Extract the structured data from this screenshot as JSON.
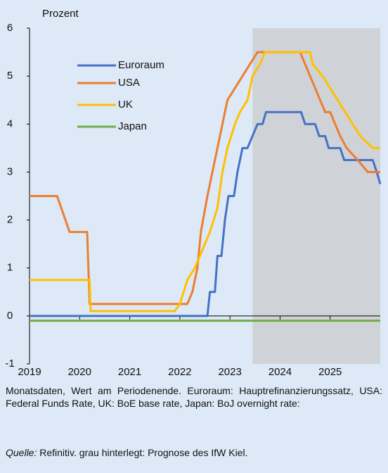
{
  "chart_data": {
    "type": "line",
    "y_label": "Prozent",
    "xlim": [
      2019,
      2026
    ],
    "xticks": [
      2019,
      2020,
      2021,
      2022,
      2023,
      2024,
      2025
    ],
    "ylim": [
      -1,
      6
    ],
    "yticks": [
      -1,
      0,
      1,
      2,
      3,
      4,
      5,
      6
    ],
    "shaded": [
      2023.45,
      2026
    ],
    "series": [
      {
        "name": "Euroraum",
        "color": "#4472c4",
        "x": [
          2019,
          2022.55,
          2022.6,
          2022.7,
          2022.75,
          2022.83,
          2022.9,
          2022.97,
          2023.08,
          2023.15,
          2023.25,
          2023.35,
          2023.45,
          2023.55,
          2023.65,
          2023.72,
          2024.42,
          2024.5,
          2024.7,
          2024.78,
          2024.9,
          2024.97,
          2025.2,
          2025.28,
          2025.85,
          2025.93,
          2026
        ],
        "values": [
          0,
          0,
          0.5,
          0.5,
          1.25,
          1.25,
          2.0,
          2.5,
          2.5,
          3.0,
          3.5,
          3.5,
          3.75,
          4.0,
          4.0,
          4.25,
          4.25,
          4.0,
          4.0,
          3.75,
          3.75,
          3.5,
          3.5,
          3.25,
          3.25,
          3.0,
          2.75
        ]
      },
      {
        "name": "USA",
        "color": "#ed7d31",
        "x": [
          2019,
          2019.55,
          2019.8,
          2020.15,
          2020.2,
          2022.15,
          2022.25,
          2022.35,
          2022.42,
          2022.55,
          2022.7,
          2022.85,
          2022.95,
          2023.1,
          2023.25,
          2023.4,
          2023.55,
          2024.4,
          2024.5,
          2024.6,
          2024.7,
          2024.8,
          2024.9,
          2025.0,
          2025.1,
          2025.2,
          2025.33,
          2025.55,
          2025.75,
          2026
        ],
        "values": [
          2.5,
          2.5,
          1.75,
          1.75,
          0.25,
          0.25,
          0.5,
          1.0,
          1.75,
          2.5,
          3.25,
          4.0,
          4.5,
          4.75,
          5.0,
          5.25,
          5.5,
          5.5,
          5.25,
          5.0,
          4.75,
          4.5,
          4.25,
          4.25,
          4.0,
          3.75,
          3.5,
          3.25,
          3.0,
          3.0
        ]
      },
      {
        "name": "UK",
        "color": "#ffc000",
        "x": [
          2019,
          2020.2,
          2020.22,
          2021.9,
          2022.0,
          2022.15,
          2022.3,
          2022.4,
          2022.6,
          2022.75,
          2022.85,
          2022.95,
          2023.1,
          2023.2,
          2023.35,
          2023.45,
          2023.6,
          2023.7,
          2024.6,
          2024.65,
          2024.85,
          2025.0,
          2025.3,
          2025.45,
          2025.6,
          2025.85,
          2026
        ],
        "values": [
          0.75,
          0.75,
          0.1,
          0.1,
          0.25,
          0.75,
          1.0,
          1.25,
          1.75,
          2.25,
          3.0,
          3.5,
          4.0,
          4.25,
          4.5,
          5.0,
          5.25,
          5.5,
          5.5,
          5.25,
          5.0,
          4.75,
          4.25,
          4.0,
          3.75,
          3.5,
          3.5
        ]
      },
      {
        "name": "Japan",
        "color": "#70ad47",
        "x": [
          2019,
          2026
        ],
        "values": [
          -0.1,
          -0.1
        ]
      }
    ],
    "note": "Monatsdaten, Wert am Periodenende. Euroraum: Hauptrefinanzierungssatz, USA: Federal Funds Rate, UK: BoE base rate, Japan: BoJ overnight rate:",
    "source": {
      "label": "Quelle:",
      "text": "Refinitiv. grau hinterlegt: Prognose des IfW Kiel."
    }
  }
}
